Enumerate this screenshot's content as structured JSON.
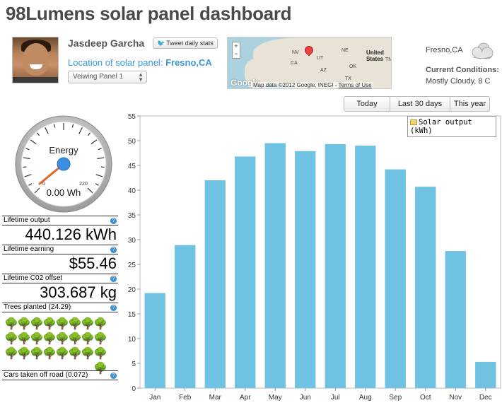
{
  "header": {
    "title": "98Lumens solar panel dashboard"
  },
  "user": {
    "name": "Jasdeep Garcha",
    "tweet_label": "Tweet daily stats",
    "location_prefix": "Location of solar panel:",
    "location_value": "Fresno,CA",
    "panel_select": "Veiwing Panel 1"
  },
  "map": {
    "country_label": "United States",
    "google_logo": "Google",
    "attribution": "Map data ©2012 Google, INEGI -",
    "terms": "Terms of Use",
    "zoom_in": "+",
    "zoom_out": "−"
  },
  "weather": {
    "city": "Fresno,CA",
    "icon": "cloudy-icon",
    "conditions_label": "Current Conditions:",
    "conditions_value": "Mostly Cloudy, 8 C"
  },
  "range_buttons": [
    "Today",
    "Last 30 days",
    "This year"
  ],
  "gauge": {
    "label": "Energy",
    "min": "0",
    "max": "220",
    "value": 0,
    "reading": "0.00 Wh"
  },
  "stats": {
    "lifetime_output": {
      "label": "Lifetime output",
      "value": "440.126 kWh"
    },
    "lifetime_earning": {
      "label": "Lifetime earning",
      "value": "$55.46"
    },
    "lifetime_co2": {
      "label": "Lifetime C02 offset",
      "value": "303.687 kg"
    },
    "trees": {
      "label": "Trees planted (24.29)",
      "count": 24.29
    },
    "cars": {
      "label": "Cars taken off road (0.072)"
    }
  },
  "colors": {
    "bar": "#6fc2e2",
    "accent": "#3a9ad9",
    "tree": "#7aa83a"
  },
  "chart_data": {
    "type": "bar",
    "title": "",
    "categories": [
      "Jan",
      "Feb",
      "Mar",
      "Apr",
      "May",
      "Jun",
      "Jul",
      "Aug",
      "Sep",
      "Oct",
      "Nov",
      "Dec"
    ],
    "series": [
      {
        "name": "Solar output (kWh)",
        "values": [
          19.2,
          28.9,
          42.0,
          46.8,
          49.5,
          47.9,
          49.3,
          49.0,
          44.2,
          40.7,
          27.7,
          5.3
        ]
      }
    ],
    "ylim": [
      0,
      55
    ],
    "yticks": [
      0,
      5,
      10,
      15,
      20,
      25,
      30,
      35,
      40,
      45,
      50,
      55
    ],
    "legend": "top-right",
    "grid": false
  }
}
